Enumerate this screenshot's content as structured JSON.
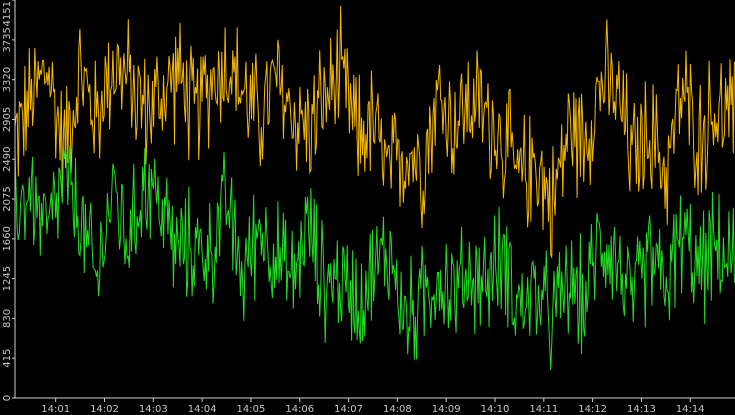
{
  "chart_data": {
    "type": "line",
    "title": "",
    "xlabel": "",
    "ylabel": "",
    "background": "#000000",
    "grid": false,
    "legend": "none",
    "ylim": [
      0,
      4151
    ],
    "y_ticks": [
      0,
      415,
      830,
      1245,
      1660,
      2075,
      2490,
      2905,
      3320,
      3735,
      4151
    ],
    "x_range": [
      "14:00:10",
      "14:14:55"
    ],
    "x_ticks": [
      "14:01",
      "14:02",
      "14:03",
      "14:04",
      "14:05",
      "14:06",
      "14:07",
      "14:08",
      "14:09",
      "14:10",
      "14:11",
      "14:12",
      "14:13",
      "14:14"
    ],
    "x": [
      "14:00:10",
      "14:00:30",
      "14:00:50",
      "14:01:10",
      "14:01:30",
      "14:01:50",
      "14:02:10",
      "14:02:30",
      "14:02:50",
      "14:03:10",
      "14:03:30",
      "14:03:50",
      "14:04:10",
      "14:04:30",
      "14:04:50",
      "14:05:10",
      "14:05:30",
      "14:05:50",
      "14:06:10",
      "14:06:30",
      "14:06:50",
      "14:07:10",
      "14:07:30",
      "14:07:50",
      "14:08:10",
      "14:08:30",
      "14:08:50",
      "14:09:10",
      "14:09:30",
      "14:09:50",
      "14:10:10",
      "14:10:30",
      "14:10:50",
      "14:11:10",
      "14:11:30",
      "14:11:50",
      "14:12:10",
      "14:12:30",
      "14:12:50",
      "14:13:10",
      "14:13:30",
      "14:13:50",
      "14:14:10",
      "14:14:30",
      "14:14:55"
    ],
    "series": [
      {
        "color": "#f5b800",
        "values": [
          2700,
          3100,
          3450,
          2600,
          3400,
          2900,
          3500,
          3300,
          3000,
          3150,
          3400,
          2950,
          3300,
          3500,
          3200,
          2900,
          3300,
          3000,
          2800,
          3100,
          3350,
          2750,
          2850,
          2300,
          2600,
          2450,
          3150,
          2850,
          3100,
          2950,
          2700,
          2250,
          2500,
          2000,
          2800,
          2700,
          3300,
          3150,
          2500,
          2800,
          2350,
          3200,
          2700,
          3000,
          2900
        ]
      },
      {
        "color": "#22dd22",
        "values": [
          2000,
          2150,
          1700,
          2300,
          1850,
          1200,
          2200,
          1600,
          2300,
          2000,
          1500,
          1600,
          1500,
          2050,
          1250,
          1800,
          1500,
          1200,
          1800,
          1200,
          1250,
          1050,
          1300,
          1550,
          800,
          1000,
          1300,
          1100,
          1300,
          1200,
          1500,
          950,
          1100,
          800,
          1200,
          1000,
          1700,
          1450,
          950,
          1500,
          1150,
          1700,
          1300,
          1550,
          1350
        ]
      }
    ]
  }
}
